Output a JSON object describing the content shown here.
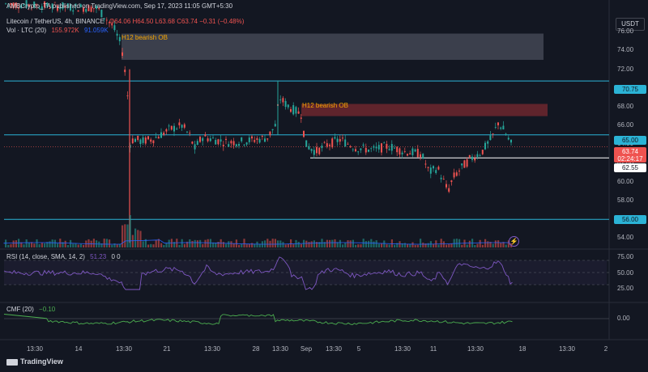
{
  "header": {
    "publisher": "AMBCrypto_TA published on TradingView.com, Sep 17, 2023 11:05 GMT+5:30",
    "symbol": "Litecoin / TetherUS, 4h, BINANCE",
    "ohlc": "O64.06 H64.50 L63.68 C63.74 −0.31 (−0.48%)",
    "volume": "Vol · LTC (20)",
    "volume_val1": "155.972K",
    "volume_val2": "91.059K"
  },
  "currency_button": "USDT",
  "price_axis": {
    "min": 53,
    "max": 78,
    "ticks": [
      "76.00",
      "74.00",
      "72.00",
      "70.00",
      "68.00",
      "66.00",
      "64.00",
      "62.00",
      "60.00",
      "58.00",
      "54.00"
    ]
  },
  "price_tags": {
    "level_high": "70.75",
    "level_mid": "65.00",
    "current": "63.74",
    "countdown": "02:24:17",
    "support": "62.55",
    "level_low": "56.00"
  },
  "annotations": {
    "ob_top": "H12 bearish OB",
    "ob_mid": "H12 bearish OB"
  },
  "rsi": {
    "label": "RSI (14, close, SMA, 14, 2)",
    "value": "51.23",
    "extra": "0 0",
    "ticks": [
      "75.00",
      "50.00",
      "25.00"
    ]
  },
  "cmf": {
    "label": "CMF (20)",
    "value": "−0.10",
    "tick": "0.00"
  },
  "time_axis": [
    "13:30",
    "14",
    "13:30",
    "21",
    "13:30",
    "28",
    "13:30",
    "Sep",
    "13:30",
    "5",
    "13:30",
    "11",
    "13:30",
    "18",
    "13:30",
    "2"
  ],
  "footer": "TradingView",
  "colors": {
    "up": "#26a69a",
    "down": "#ef5350",
    "level": "#2bb3d6",
    "rsi": "#7e57c2",
    "cmf": "#4caf50",
    "ob_top": "#5d6070",
    "ob_mid": "#7a2a30"
  }
}
